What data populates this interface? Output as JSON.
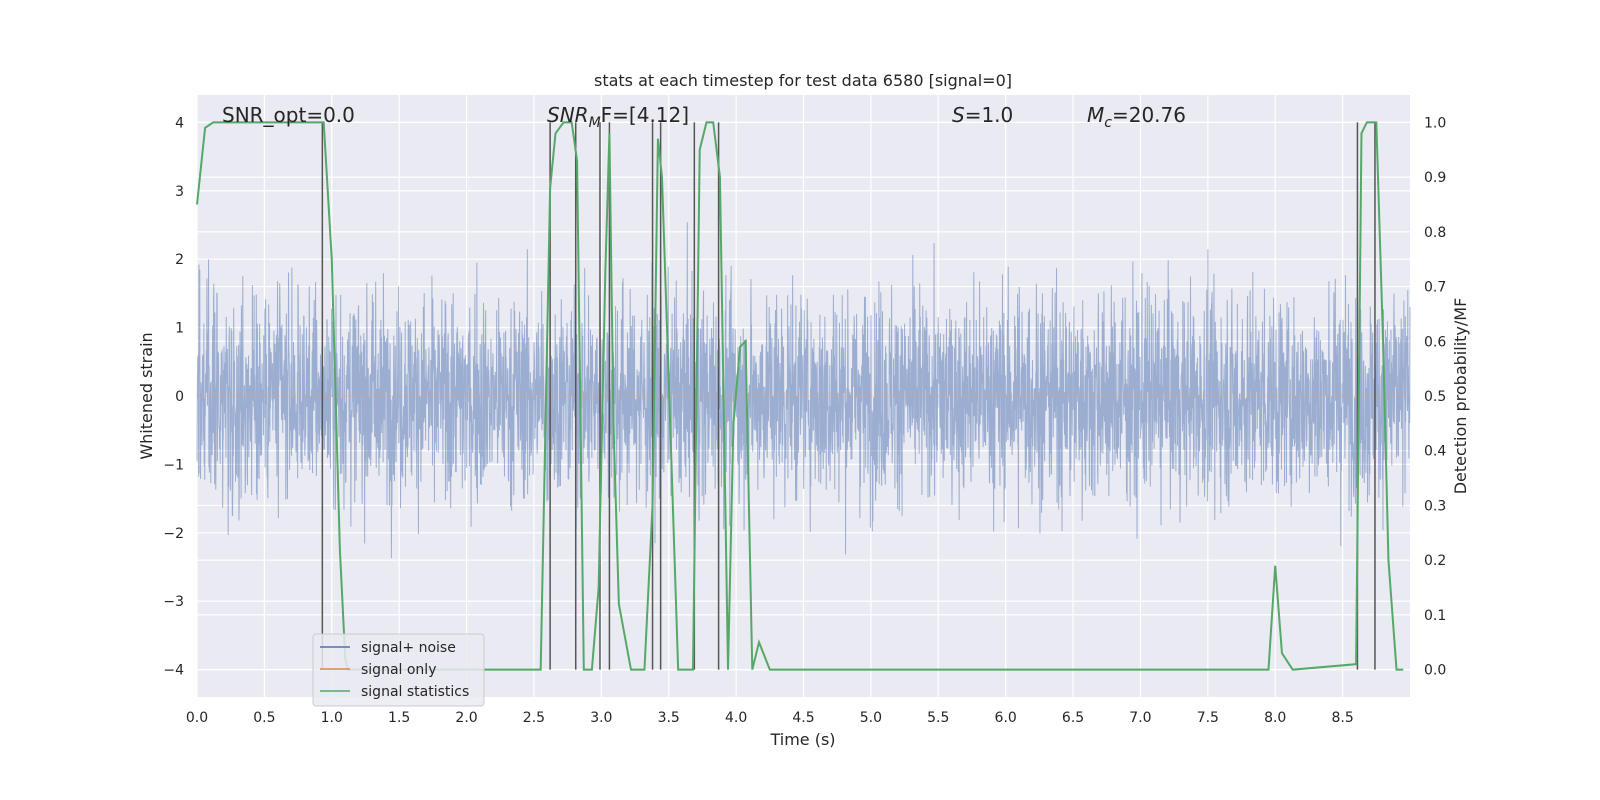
{
  "chart_data": {
    "type": "line",
    "title": "stats at each timestep for test data 6580 [signal=0]",
    "xlabel": "Time (s)",
    "ylabel_left": "Whitened strain",
    "ylabel_right": "Detection probability/MF",
    "xlim": [
      0.0,
      9.0
    ],
    "ylim_left": [
      -4.4,
      4.4
    ],
    "ylim_right": [
      -0.05,
      1.05
    ],
    "x_ticks": [
      "0.0",
      "0.5",
      "1.0",
      "1.5",
      "2.0",
      "2.5",
      "3.0",
      "3.5",
      "4.0",
      "4.5",
      "5.0",
      "5.5",
      "6.0",
      "6.5",
      "7.0",
      "7.5",
      "8.0",
      "8.5"
    ],
    "x_tick_values": [
      0.0,
      0.5,
      1.0,
      1.5,
      2.0,
      2.5,
      3.0,
      3.5,
      4.0,
      4.5,
      5.0,
      5.5,
      6.0,
      6.5,
      7.0,
      7.5,
      8.0,
      8.5
    ],
    "y_left_ticks": [
      "4",
      "3",
      "2",
      "1",
      "0",
      "−1",
      "−2",
      "−3",
      "−4"
    ],
    "y_left_tick_values": [
      4,
      3,
      2,
      1,
      0,
      -1,
      -2,
      -3,
      -4
    ],
    "y_right_ticks": [
      "1.0",
      "0.9",
      "0.8",
      "0.7",
      "0.6",
      "0.5",
      "0.4",
      "0.3",
      "0.2",
      "0.1",
      "0.0"
    ],
    "y_right_tick_values": [
      1.0,
      0.9,
      0.8,
      0.7,
      0.6,
      0.5,
      0.4,
      0.3,
      0.2,
      0.1,
      0.0
    ],
    "grid": true,
    "background": "#eaeaf2",
    "annotations": {
      "snr_opt": "SNR_opt=0.0",
      "snr_mf_main": "SNR",
      "snr_mf_sub": "M",
      "snr_mf_rest": "F=[4.12]",
      "s_main": "S",
      "s_rest": "=1.0",
      "mc_main": "M",
      "mc_sub": "c",
      "mc_rest": "=20.76"
    },
    "legend": {
      "placement": "lower-left",
      "entries": [
        {
          "label": "signal+ noise",
          "color": "#4c72b0"
        },
        {
          "label": "signal only",
          "color": "#dd8452"
        },
        {
          "label": "signal statistics",
          "color": "#55a868"
        }
      ]
    },
    "series": [
      {
        "name": "signal+ noise",
        "color": "#4c72b0",
        "kind": "noise",
        "sampling_note": "dense whitened-strain noise, amplitude roughly within ±4"
      },
      {
        "name": "signal only",
        "color": "#dd8452",
        "kind": "flat"
      },
      {
        "name": "signal statistics",
        "color": "#55a868",
        "axis": "right",
        "x": [
          0.0,
          0.06,
          0.12,
          0.18,
          0.9,
          0.94,
          1.0,
          1.06,
          1.1,
          1.12,
          2.55,
          2.62,
          2.66,
          2.72,
          2.78,
          2.82,
          2.87,
          2.93,
          2.98,
          3.03,
          3.06,
          3.09,
          3.13,
          3.22,
          3.32,
          3.38,
          3.42,
          3.45,
          3.52,
          3.57,
          3.63,
          3.68,
          3.73,
          3.78,
          3.83,
          3.88,
          3.94,
          3.98,
          4.03,
          4.07,
          4.12,
          4.17,
          4.25,
          4.3,
          7.95,
          8.0,
          8.05,
          8.13,
          8.6,
          8.64,
          8.68,
          8.75,
          8.8,
          8.84,
          8.9,
          8.95
        ],
        "values": [
          0.85,
          0.99,
          1.0,
          1.0,
          1.0,
          1.0,
          0.75,
          0.22,
          0.02,
          0.0,
          0.0,
          0.88,
          0.98,
          1.0,
          1.0,
          0.93,
          0.0,
          0.0,
          0.15,
          0.73,
          0.98,
          0.45,
          0.12,
          0.0,
          0.0,
          0.3,
          0.97,
          0.9,
          0.38,
          0.0,
          0.0,
          0.0,
          0.95,
          1.0,
          1.0,
          0.9,
          0.0,
          0.45,
          0.59,
          0.6,
          0.0,
          0.05,
          0.0,
          0.0,
          0.0,
          0.19,
          0.03,
          0.0,
          0.01,
          0.98,
          1.0,
          1.0,
          0.6,
          0.2,
          0.0,
          0.0
        ]
      }
    ],
    "vertical_lines": {
      "color": "#555555",
      "x": [
        0.93,
        2.62,
        2.81,
        2.99,
        3.06,
        3.38,
        3.44,
        3.69,
        3.87,
        8.61,
        8.74
      ]
    }
  }
}
